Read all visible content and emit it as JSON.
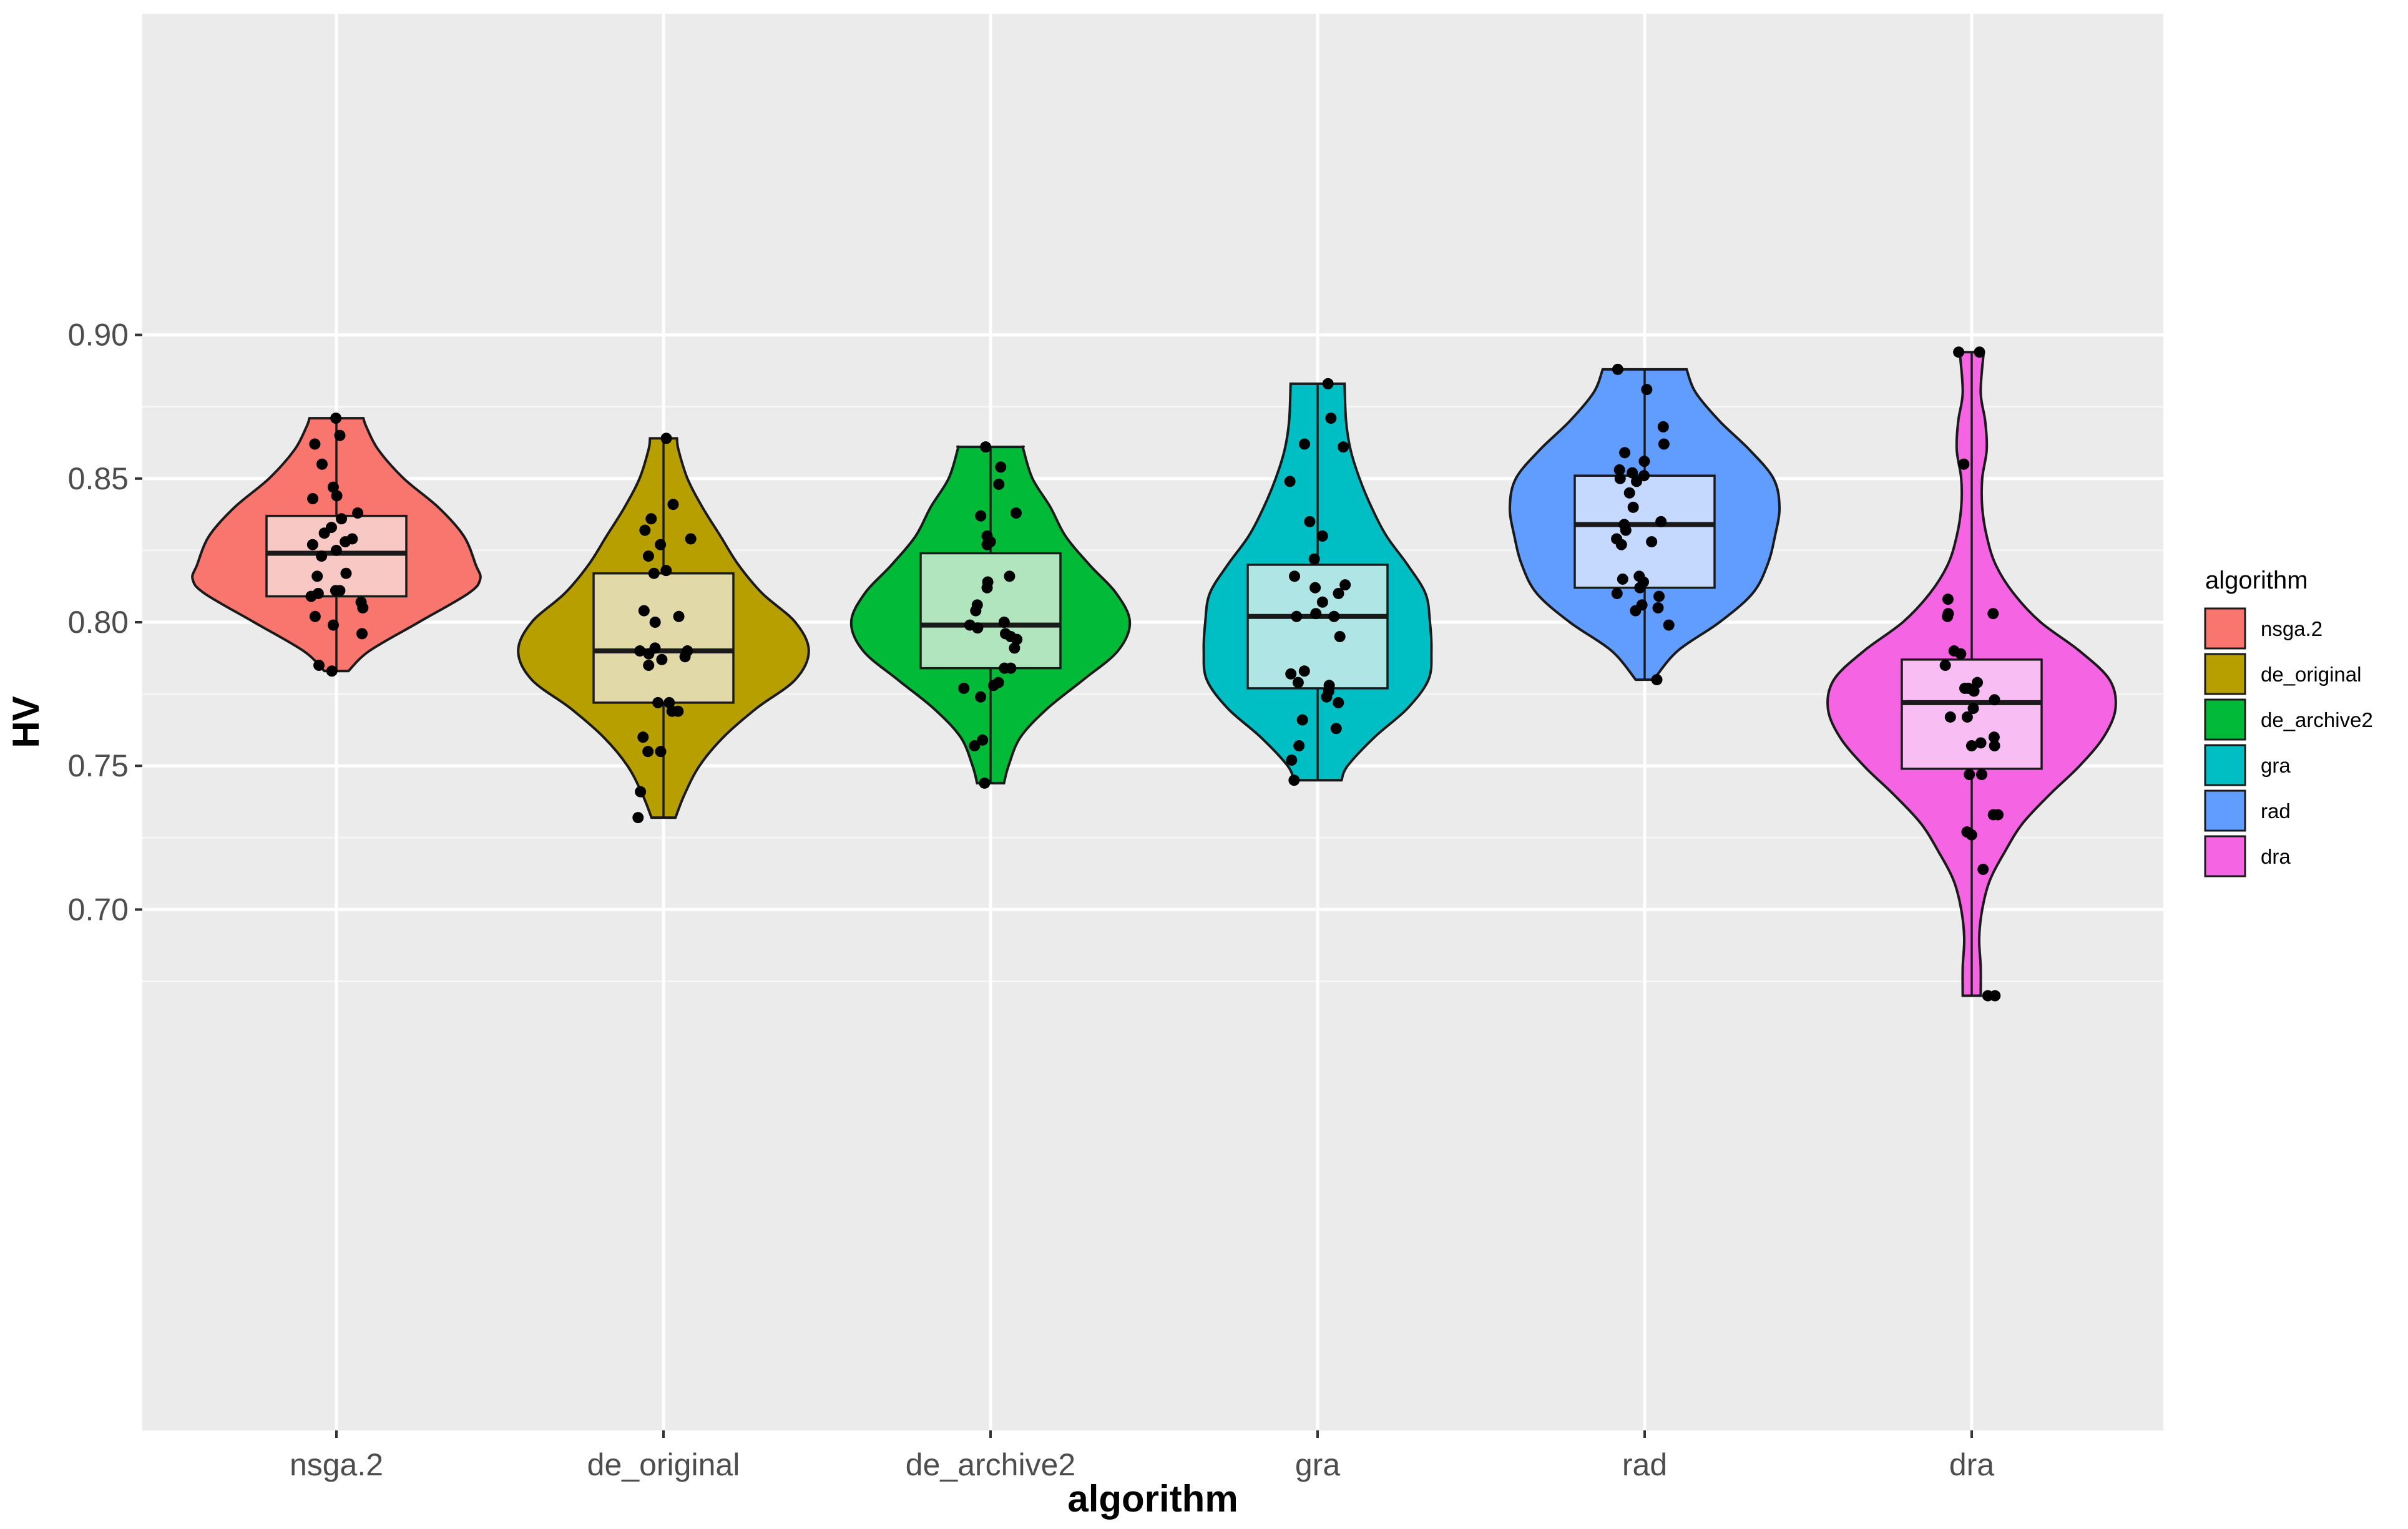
{
  "chart_data": {
    "type": "violin",
    "xlabel": "algorithm",
    "ylabel": "HV",
    "categories": [
      "nsga.2",
      "de_original",
      "de_archive2",
      "gra",
      "rad",
      "dra"
    ],
    "ylim": [
      0.667,
      0.905
    ],
    "yticks": [
      "0.70",
      "0.75",
      "0.80",
      "0.85",
      "0.90"
    ],
    "ytick_values": [
      0.7,
      0.75,
      0.8,
      0.85,
      0.9
    ],
    "grid": true,
    "legend": {
      "title": "algorithm",
      "position": "right",
      "entries": [
        "nsga.2",
        "de_original",
        "de_archive2",
        "gra",
        "rad",
        "dra"
      ]
    },
    "colors": {
      "nsga.2": "#F8766D",
      "de_original": "#B79F00",
      "de_archive2": "#00BA38",
      "gra": "#00BFC4",
      "rad": "#619CFF",
      "dra": "#F564E3"
    },
    "box_colors": {
      "nsga.2": "#F8C8C5",
      "de_original": "#E2D9A8",
      "de_archive2": "#B1E5BE",
      "gra": "#B0E5E6",
      "rad": "#C5D9FF",
      "dra": "#F8BDF3"
    },
    "series": [
      {
        "name": "nsga.2",
        "min": 0.783,
        "q1": 0.809,
        "median": 0.824,
        "q3": 0.837,
        "max": 0.871,
        "violin": [
          [
            0.783,
            0.08
          ],
          [
            0.79,
            0.22
          ],
          [
            0.8,
            0.55
          ],
          [
            0.81,
            0.88
          ],
          [
            0.815,
            0.96
          ],
          [
            0.82,
            0.93
          ],
          [
            0.83,
            0.85
          ],
          [
            0.84,
            0.68
          ],
          [
            0.85,
            0.45
          ],
          [
            0.86,
            0.28
          ],
          [
            0.868,
            0.2
          ],
          [
            0.871,
            0.18
          ]
        ],
        "points": [
          0.871,
          0.865,
          0.862,
          0.855,
          0.847,
          0.844,
          0.843,
          0.838,
          0.836,
          0.833,
          0.831,
          0.829,
          0.828,
          0.827,
          0.825,
          0.823,
          0.817,
          0.816,
          0.811,
          0.811,
          0.81,
          0.809,
          0.807,
          0.805,
          0.802,
          0.799,
          0.796,
          0.785,
          0.783
        ]
      },
      {
        "name": "de_original",
        "min": 0.732,
        "q1": 0.772,
        "median": 0.79,
        "q3": 0.817,
        "max": 0.864,
        "violin": [
          [
            0.732,
            0.08
          ],
          [
            0.74,
            0.14
          ],
          [
            0.75,
            0.24
          ],
          [
            0.76,
            0.4
          ],
          [
            0.77,
            0.62
          ],
          [
            0.78,
            0.88
          ],
          [
            0.79,
            0.97
          ],
          [
            0.8,
            0.88
          ],
          [
            0.81,
            0.66
          ],
          [
            0.82,
            0.5
          ],
          [
            0.83,
            0.38
          ],
          [
            0.84,
            0.26
          ],
          [
            0.85,
            0.16
          ],
          [
            0.86,
            0.1
          ],
          [
            0.864,
            0.09
          ]
        ],
        "points": [
          0.864,
          0.841,
          0.836,
          0.832,
          0.829,
          0.827,
          0.823,
          0.818,
          0.817,
          0.804,
          0.802,
          0.8,
          0.791,
          0.79,
          0.79,
          0.789,
          0.788,
          0.787,
          0.785,
          0.772,
          0.772,
          0.769,
          0.769,
          0.76,
          0.755,
          0.755,
          0.741,
          0.732
        ]
      },
      {
        "name": "de_archive2",
        "min": 0.744,
        "q1": 0.784,
        "median": 0.799,
        "q3": 0.824,
        "max": 0.861,
        "violin": [
          [
            0.744,
            0.09
          ],
          [
            0.75,
            0.12
          ],
          [
            0.76,
            0.2
          ],
          [
            0.77,
            0.38
          ],
          [
            0.78,
            0.62
          ],
          [
            0.79,
            0.85
          ],
          [
            0.8,
            0.93
          ],
          [
            0.81,
            0.84
          ],
          [
            0.82,
            0.66
          ],
          [
            0.83,
            0.5
          ],
          [
            0.84,
            0.4
          ],
          [
            0.85,
            0.28
          ],
          [
            0.86,
            0.22
          ],
          [
            0.861,
            0.22
          ]
        ],
        "points": [
          0.861,
          0.854,
          0.848,
          0.838,
          0.837,
          0.83,
          0.828,
          0.827,
          0.816,
          0.814,
          0.812,
          0.806,
          0.804,
          0.8,
          0.799,
          0.798,
          0.796,
          0.795,
          0.794,
          0.791,
          0.784,
          0.784,
          0.779,
          0.778,
          0.777,
          0.774,
          0.759,
          0.757,
          0.744
        ]
      },
      {
        "name": "gra",
        "min": 0.745,
        "q1": 0.777,
        "median": 0.802,
        "q3": 0.82,
        "max": 0.883,
        "violin": [
          [
            0.745,
            0.16
          ],
          [
            0.75,
            0.2
          ],
          [
            0.76,
            0.38
          ],
          [
            0.77,
            0.6
          ],
          [
            0.78,
            0.74
          ],
          [
            0.79,
            0.76
          ],
          [
            0.8,
            0.75
          ],
          [
            0.81,
            0.72
          ],
          [
            0.82,
            0.6
          ],
          [
            0.83,
            0.46
          ],
          [
            0.84,
            0.36
          ],
          [
            0.85,
            0.28
          ],
          [
            0.86,
            0.22
          ],
          [
            0.87,
            0.19
          ],
          [
            0.883,
            0.18
          ]
        ],
        "points": [
          0.883,
          0.871,
          0.862,
          0.861,
          0.849,
          0.835,
          0.83,
          0.822,
          0.816,
          0.813,
          0.812,
          0.81,
          0.807,
          0.803,
          0.802,
          0.802,
          0.795,
          0.783,
          0.782,
          0.779,
          0.778,
          0.776,
          0.774,
          0.772,
          0.766,
          0.763,
          0.757,
          0.752,
          0.745
        ]
      },
      {
        "name": "rad",
        "min": 0.78,
        "q1": 0.812,
        "median": 0.834,
        "q3": 0.851,
        "max": 0.888,
        "violin": [
          [
            0.78,
            0.06
          ],
          [
            0.79,
            0.22
          ],
          [
            0.8,
            0.5
          ],
          [
            0.81,
            0.72
          ],
          [
            0.82,
            0.82
          ],
          [
            0.83,
            0.87
          ],
          [
            0.84,
            0.9
          ],
          [
            0.85,
            0.86
          ],
          [
            0.86,
            0.7
          ],
          [
            0.87,
            0.5
          ],
          [
            0.88,
            0.34
          ],
          [
            0.888,
            0.28
          ]
        ],
        "points": [
          0.888,
          0.881,
          0.868,
          0.862,
          0.859,
          0.856,
          0.853,
          0.852,
          0.851,
          0.85,
          0.849,
          0.845,
          0.84,
          0.835,
          0.834,
          0.832,
          0.829,
          0.828,
          0.827,
          0.816,
          0.815,
          0.814,
          0.812,
          0.81,
          0.809,
          0.806,
          0.805,
          0.804,
          0.799,
          0.78
        ]
      },
      {
        "name": "dra",
        "min": 0.67,
        "q1": 0.749,
        "median": 0.772,
        "q3": 0.787,
        "max": 0.894,
        "violin": [
          [
            0.67,
            0.06
          ],
          [
            0.68,
            0.06
          ],
          [
            0.69,
            0.05
          ],
          [
            0.7,
            0.07
          ],
          [
            0.71,
            0.12
          ],
          [
            0.72,
            0.22
          ],
          [
            0.73,
            0.34
          ],
          [
            0.74,
            0.52
          ],
          [
            0.75,
            0.72
          ],
          [
            0.76,
            0.88
          ],
          [
            0.77,
            0.96
          ],
          [
            0.78,
            0.92
          ],
          [
            0.79,
            0.72
          ],
          [
            0.8,
            0.46
          ],
          [
            0.81,
            0.28
          ],
          [
            0.82,
            0.16
          ],
          [
            0.83,
            0.1
          ],
          [
            0.84,
            0.07
          ],
          [
            0.85,
            0.07
          ],
          [
            0.86,
            0.1
          ],
          [
            0.87,
            0.09
          ],
          [
            0.88,
            0.06
          ],
          [
            0.894,
            0.08
          ]
        ],
        "points": [
          0.894,
          0.894,
          0.855,
          0.808,
          0.803,
          0.803,
          0.802,
          0.79,
          0.789,
          0.785,
          0.779,
          0.777,
          0.777,
          0.776,
          0.773,
          0.77,
          0.767,
          0.767,
          0.76,
          0.758,
          0.757,
          0.757,
          0.747,
          0.747,
          0.733,
          0.733,
          0.727,
          0.726,
          0.714,
          0.67,
          0.67
        ]
      }
    ]
  }
}
